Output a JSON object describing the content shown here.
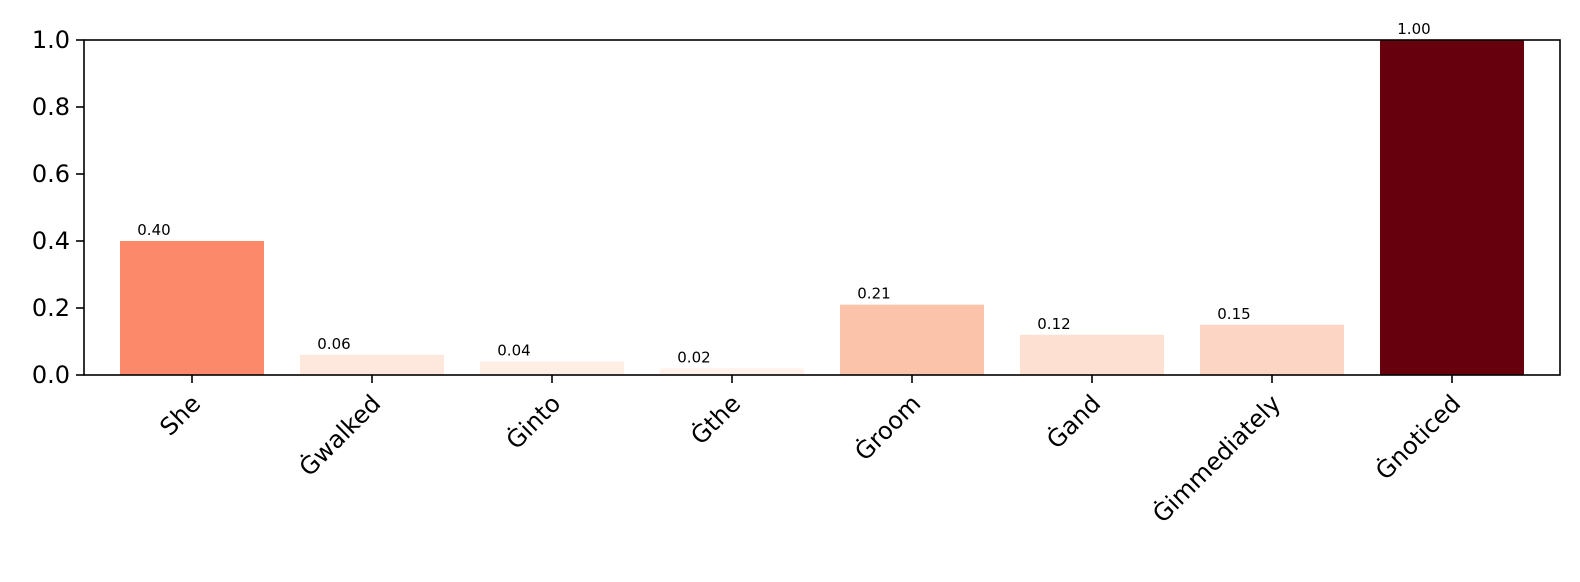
{
  "chart_data": {
    "type": "bar",
    "categories": [
      "She",
      "Ġwalked",
      "Ġinto",
      "Ġthe",
      "Ġroom",
      "Ġand",
      "Ġimmediately",
      "Ġnoticed"
    ],
    "values": [
      0.4,
      0.06,
      0.04,
      0.02,
      0.21,
      0.12,
      0.15,
      1.0
    ],
    "value_labels": [
      "0.40",
      "0.06",
      "0.04",
      "0.02",
      "0.21",
      "0.12",
      "0.15",
      "1.00"
    ],
    "bar_colors": [
      "#fc8a6a",
      "#fee8dd",
      "#feeee6",
      "#fff2ec",
      "#fcc3ab",
      "#fee0d2",
      "#fdd5c4",
      "#67000d"
    ],
    "ylim": [
      0,
      1.0
    ],
    "yticks": [
      0.0,
      0.2,
      0.4,
      0.6,
      0.8,
      1.0
    ],
    "ytick_labels": [
      "0.0",
      "0.2",
      "0.4",
      "0.6",
      "0.8",
      "1.0"
    ],
    "colormap": "Reds",
    "grid": false,
    "legend": "none"
  }
}
